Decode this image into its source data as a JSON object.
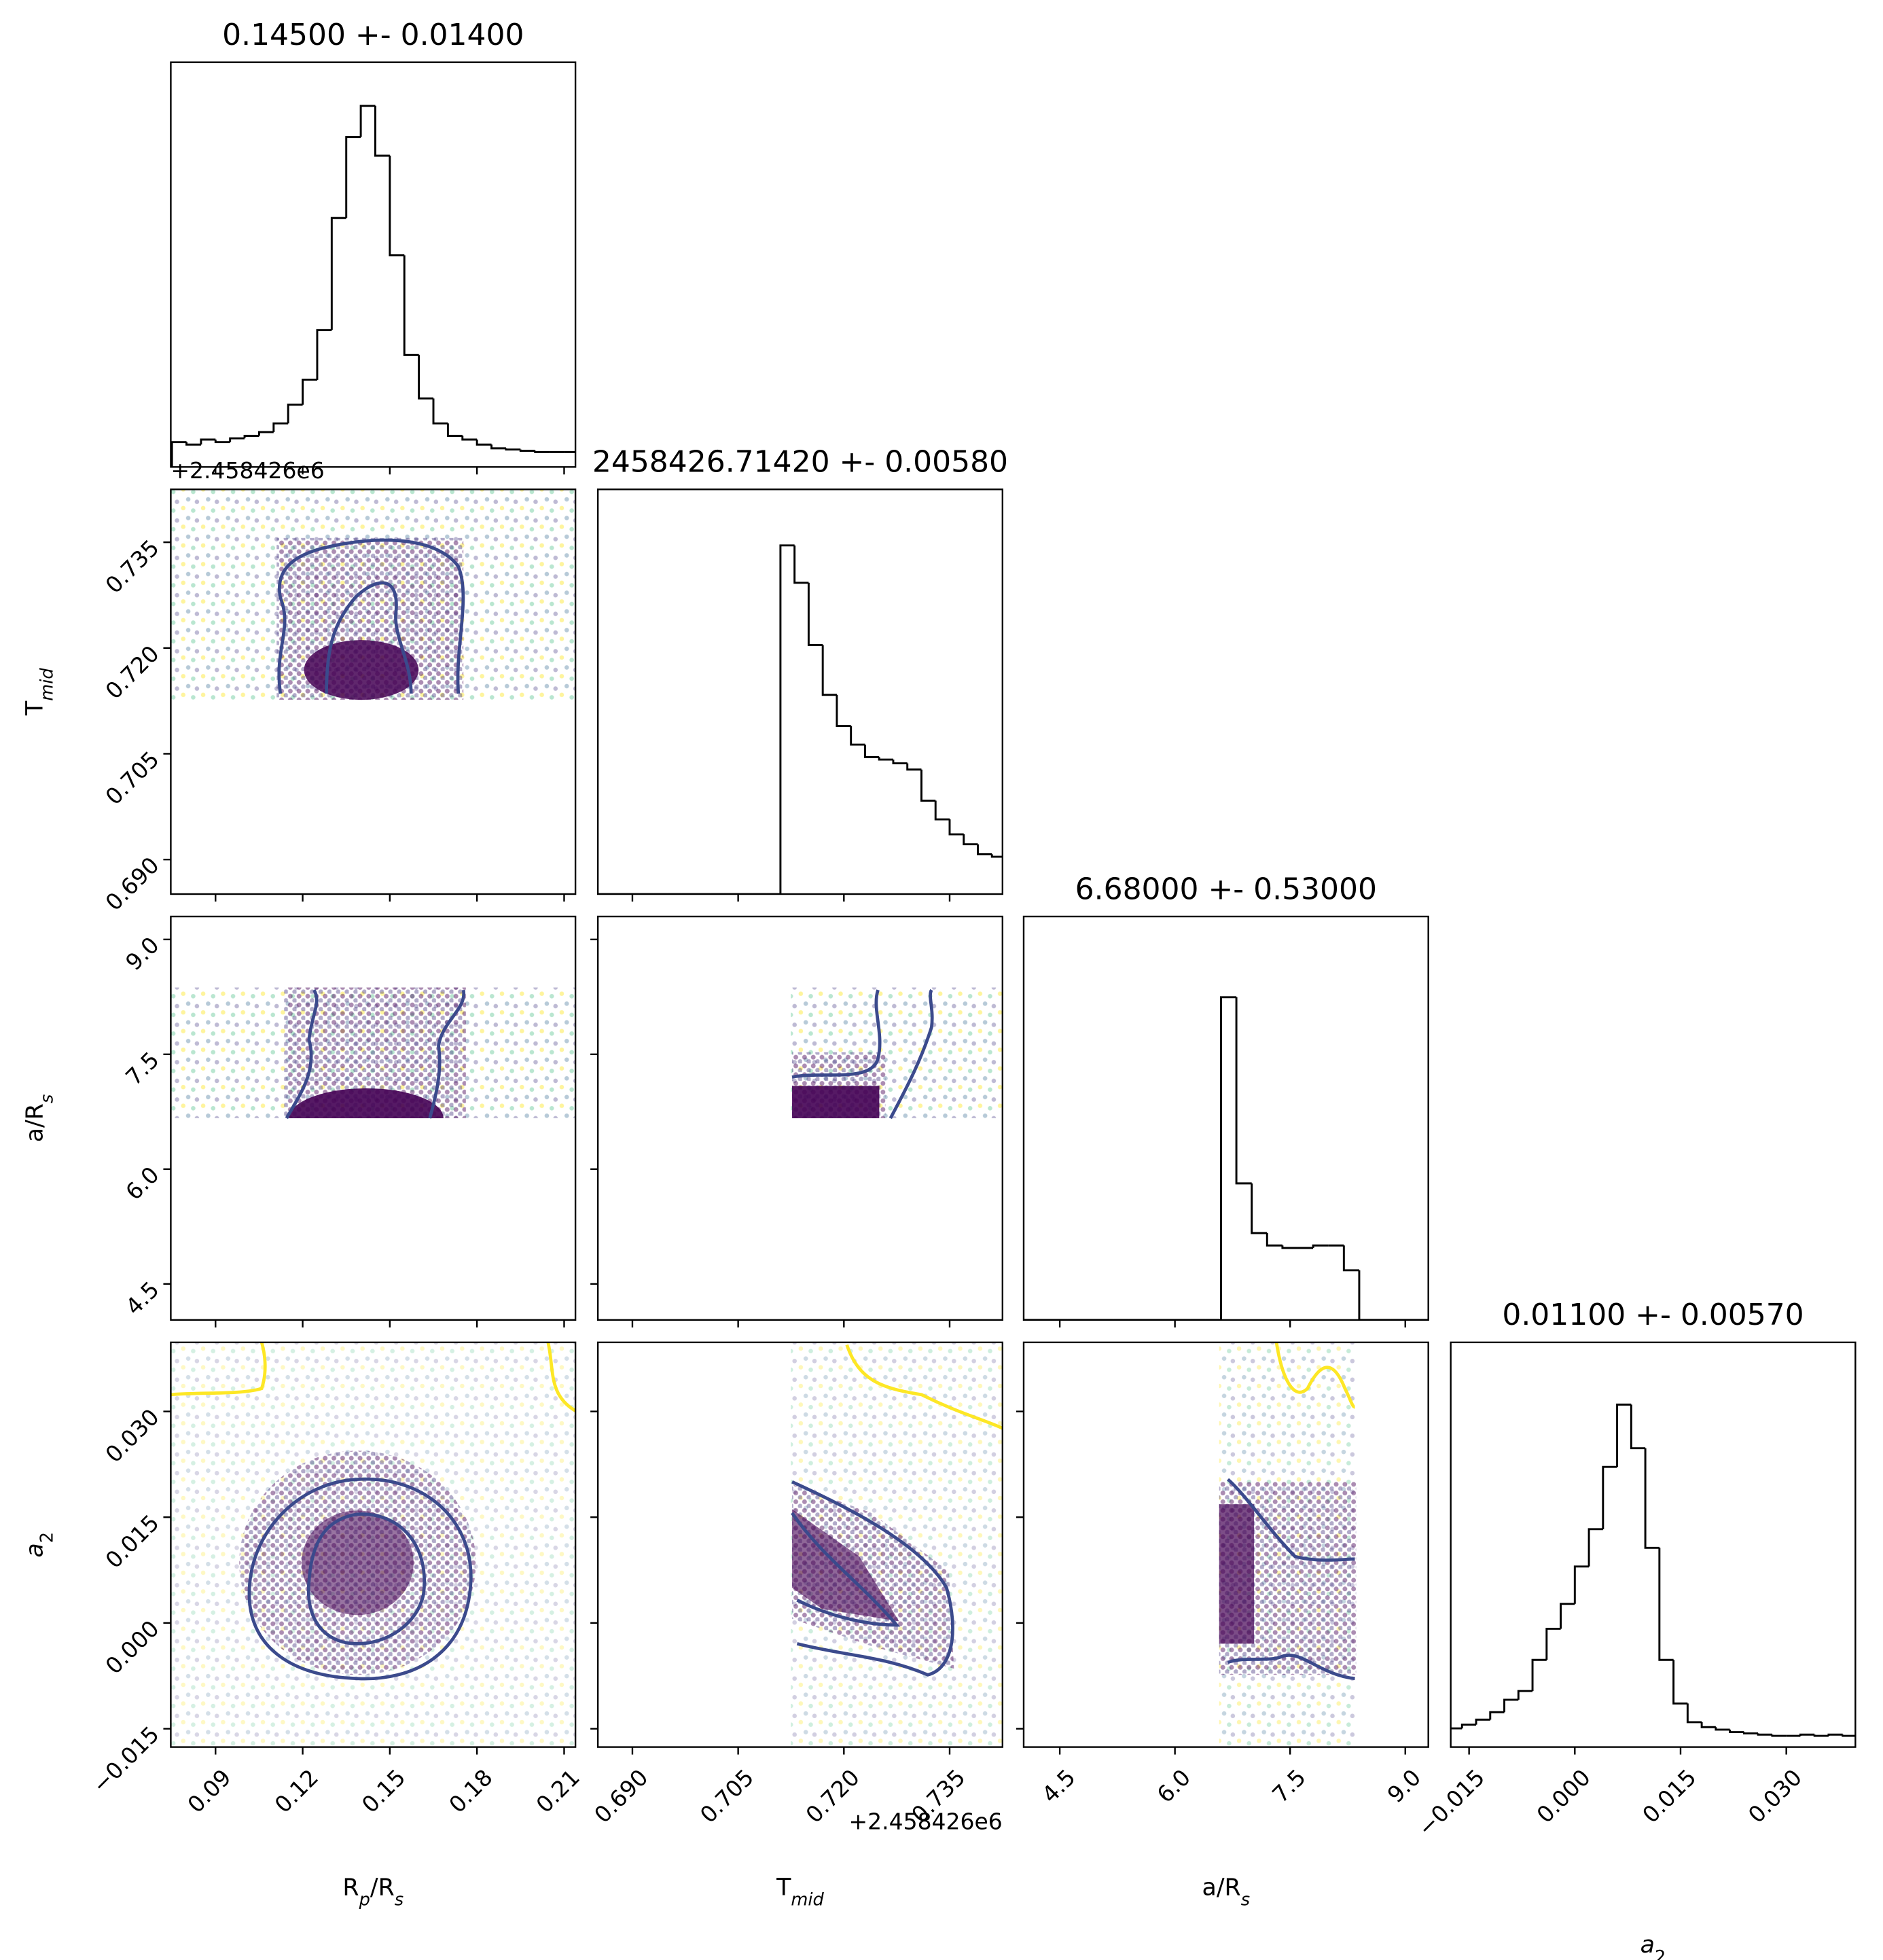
{
  "chart_data": {
    "type": "corner",
    "hist_ylim": [
      0,
      325
    ],
    "variables": [
      {
        "label": [
          {
            "text": "R"
          },
          {
            "text": "p",
            "sub": true,
            "italic": true
          },
          {
            "text": "/R"
          },
          {
            "text": "s",
            "sub": true,
            "italic": true
          }
        ],
        "title": "0.14500 +- 0.01400",
        "lim": [
          0.0746,
          0.2139
        ],
        "ticks": [
          0.09,
          0.12,
          0.15,
          0.18,
          0.21
        ],
        "bins": [
          0.075,
          0.08,
          0.085,
          0.09,
          0.095,
          0.1,
          0.105,
          0.11,
          0.115,
          0.12,
          0.125,
          0.13,
          0.135,
          0.14,
          0.145,
          0.15,
          0.155,
          0.16,
          0.165,
          0.17,
          0.175,
          0.18,
          0.185,
          0.19,
          0.195,
          0.2,
          0.205,
          0.21,
          0.215
        ],
        "counts": [
          20,
          18,
          22,
          20,
          23,
          25,
          28,
          35,
          50,
          70,
          110,
          200,
          265,
          290,
          250,
          170,
          90,
          55,
          35,
          25,
          22,
          18,
          15,
          14,
          13,
          12,
          12,
          12
        ]
      },
      {
        "label": [
          {
            "text": "T"
          },
          {
            "text": "mid",
            "sub": true,
            "italic": true
          }
        ],
        "title": "2458426.71420 +- 0.00580",
        "offset": "+2.458426e6",
        "lim": [
          0.6851,
          0.7425
        ],
        "ticks": [
          {
            "value": 0.69,
            "label": "0.690"
          },
          {
            "value": 0.705,
            "label": "0.705"
          },
          {
            "value": 0.72,
            "label": "0.720"
          },
          {
            "value": 0.735,
            "label": "0.735"
          }
        ],
        "bins": [
          0.685,
          0.687,
          0.689,
          0.691,
          0.693,
          0.695,
          0.697,
          0.699,
          0.701,
          0.703,
          0.705,
          0.707,
          0.709,
          0.711,
          0.713,
          0.715,
          0.717,
          0.719,
          0.721,
          0.723,
          0.725,
          0.727,
          0.729,
          0.731,
          0.733,
          0.735,
          0.737,
          0.739,
          0.741,
          0.743
        ],
        "counts": [
          0,
          0,
          0,
          0,
          0,
          0,
          0,
          0,
          0,
          0,
          0,
          0,
          0,
          280,
          250,
          200,
          160,
          135,
          120,
          110,
          108,
          105,
          100,
          75,
          60,
          48,
          40,
          32,
          30
        ]
      },
      {
        "label": [
          {
            "text": "a/R"
          },
          {
            "text": "s",
            "sub": true,
            "italic": true
          }
        ],
        "title": "6.68000 +- 0.53000",
        "lim": [
          4.03,
          9.3
        ],
        "ticks": [
          4.5,
          {
            "value": 6,
            "label": "6.0"
          },
          7.5,
          {
            "value": 9,
            "label": "9.0"
          }
        ],
        "bins": [
          4.0,
          4.2,
          4.4,
          4.6,
          4.8,
          5.0,
          5.2,
          5.4,
          5.6,
          5.8,
          6.0,
          6.2,
          6.4,
          6.6,
          6.8,
          7.0,
          7.2,
          7.4,
          7.6,
          7.8,
          8.0,
          8.2,
          8.4,
          8.6,
          8.8,
          9.0,
          9.2,
          9.4
        ],
        "counts": [
          0,
          0,
          0,
          0,
          0,
          0,
          0,
          0,
          0,
          0,
          0,
          0,
          0,
          260,
          110,
          70,
          60,
          58,
          58,
          60,
          60,
          40,
          0,
          0,
          0,
          0,
          0
        ]
      },
      {
        "label": [
          {
            "text": "a",
            "italic": true
          },
          {
            "text": "2",
            "sub": true
          }
        ],
        "title": "0.01100 +- 0.00570",
        "lim": [
          -0.0176,
          0.0398
        ],
        "ticks": [
          {
            "value": -0.015,
            "label": "−0.015"
          },
          {
            "value": 0,
            "label": "0.000"
          },
          0.015,
          {
            "value": 0.03,
            "label": "0.030"
          }
        ],
        "bins": [
          -0.018,
          -0.016,
          -0.014,
          -0.012,
          -0.01,
          -0.008,
          -0.006,
          -0.004,
          -0.002,
          0,
          0.002,
          0.004,
          0.006,
          0.008,
          0.01,
          0.012,
          0.014,
          0.016,
          0.018,
          0.02,
          0.022,
          0.024,
          0.026,
          0.028,
          0.03,
          0.032,
          0.034,
          0.036,
          0.038,
          0.04
        ],
        "counts": [
          15,
          18,
          22,
          28,
          38,
          45,
          70,
          95,
          115,
          145,
          175,
          225,
          275,
          240,
          160,
          70,
          35,
          20,
          16,
          14,
          12,
          11,
          10,
          9,
          9,
          10,
          9,
          10,
          9
        ]
      }
    ]
  }
}
